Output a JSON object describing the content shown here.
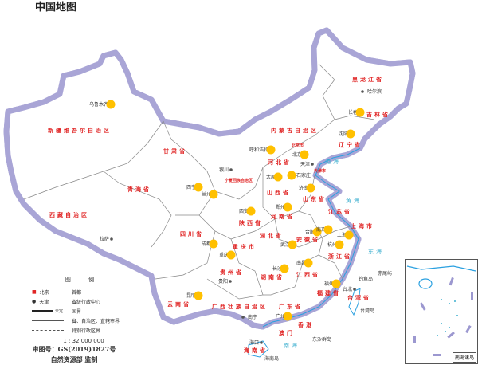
{
  "title": "中国地图",
  "colors": {
    "marker": "#ffc000",
    "province_label": "#e02424",
    "border_glow": "#9c98d0",
    "sea": "#3fb0d0"
  },
  "provinces": [
    "新疆维吾尔自治区",
    "西藏自治区",
    "青海省",
    "甘肃省",
    "内蒙古自治区",
    "黑龙江省",
    "吉林省",
    "辽宁省",
    "河北省",
    "山西省",
    "陕西省",
    "宁夏回族自治区",
    "山东省",
    "河南省",
    "江苏省",
    "安徽省",
    "上海市",
    "浙江省",
    "四川省",
    "湖北省",
    "重庆市",
    "湖南省",
    "江西省",
    "福建省",
    "贵州省",
    "云南省",
    "广西壮族自治区",
    "广东省",
    "台湾省",
    "海南省",
    "香港",
    "澳门",
    "北京市",
    "天津市"
  ],
  "cities": [
    "乌鲁木齐",
    "拉萨",
    "西宁",
    "兰州",
    "银川",
    "呼和浩特",
    "哈尔滨",
    "长春",
    "沈阳",
    "北京",
    "天津",
    "石家庄",
    "太原",
    "济南",
    "郑州",
    "西安",
    "成都",
    "重庆",
    "武汉",
    "合肥",
    "南京",
    "上海",
    "杭州",
    "南昌",
    "长沙",
    "福州",
    "贵阳",
    "昆明",
    "南宁",
    "广州",
    "台北",
    "海口"
  ],
  "seas": [
    "渤海",
    "黄海",
    "东海",
    "南海"
  ],
  "islands": [
    "台湾岛",
    "钓鱼岛",
    "赤尾屿",
    "东沙群岛",
    "海南岛"
  ],
  "legend": {
    "heading": "图 例",
    "items": [
      {
        "sample": "北京",
        "label": "首都"
      },
      {
        "sample": "天津",
        "label": "省级行政中心"
      },
      {
        "sample": "未定",
        "label": "国界"
      },
      {
        "sample": "",
        "label": "省、自治区、直辖市界"
      },
      {
        "sample": "",
        "label": "特别行政区界"
      }
    ],
    "scale": "1 : 32 000 000"
  },
  "approval": "审图号：GS(2019)1827号",
  "publisher": "自然资源部 监制",
  "inset": {
    "label": "南海诸岛"
  }
}
